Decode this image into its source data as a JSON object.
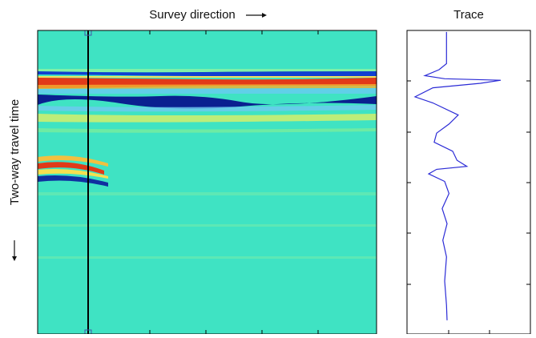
{
  "chart_data": {
    "type": "line",
    "title": "Survey direction",
    "trace_title": "Trace",
    "ylabel": "Two-way travel time",
    "x": [
      0.5,
      11,
      13,
      15,
      16,
      16.5,
      17.5,
      19,
      22,
      24,
      28,
      31,
      34,
      37,
      40,
      43,
      45,
      46,
      47.5,
      50,
      54,
      59,
      64,
      69.5,
      75,
      83,
      91,
      96
    ],
    "values": [
      -0.36,
      -0.36,
      -0.48,
      -0.71,
      -0.39,
      0.52,
      0.19,
      -0.58,
      -0.87,
      -0.58,
      -0.17,
      -0.32,
      -0.52,
      -0.56,
      -0.26,
      -0.19,
      -0.03,
      -0.52,
      -0.65,
      -0.39,
      -0.32,
      -0.43,
      -0.35,
      -0.42,
      -0.36,
      -0.39,
      -0.36,
      -0.35
    ],
    "color": "#2b2bd6",
    "xlim": [
      0,
      100
    ],
    "ylim": [
      -1,
      1
    ]
  }
}
